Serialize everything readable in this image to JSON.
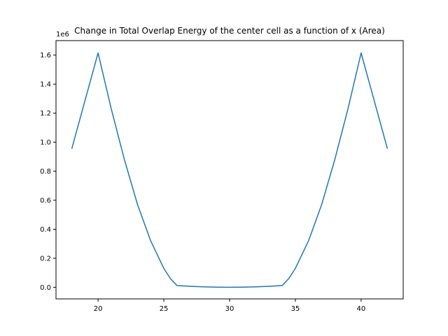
{
  "chart_data": {
    "type": "line",
    "title": "Change in Total Overlap Energy of the center cell as a function of x (Area)",
    "xlabel": "",
    "ylabel": "",
    "y_offset_label": "1e6",
    "xlim": [
      16.8,
      43.2
    ],
    "ylim": [
      -0.08,
      1.7
    ],
    "x_ticks": [
      20,
      25,
      30,
      35,
      40
    ],
    "x_tick_labels": [
      "20",
      "25",
      "30",
      "35",
      "40"
    ],
    "y_ticks": [
      0.0,
      0.2,
      0.4,
      0.6,
      0.8,
      1.0,
      1.2,
      1.4,
      1.6
    ],
    "y_tick_labels": [
      "0.0",
      "0.2",
      "0.4",
      "0.6",
      "0.8",
      "1.0",
      "1.2",
      "1.4",
      "1.6"
    ],
    "grid": false,
    "series": [
      {
        "color": "#1f77b4",
        "x": [
          18,
          20,
          21,
          22,
          23,
          24,
          25,
          25.5,
          26,
          27,
          28,
          29,
          30,
          31,
          32,
          33,
          34,
          34.5,
          35,
          36,
          37,
          38,
          39,
          40,
          42
        ],
        "y": [
          0.955,
          1.615,
          1.23,
          0.88,
          0.57,
          0.32,
          0.13,
          0.06,
          0.012,
          0.007,
          0.003,
          0.0005,
          0.0,
          0.0005,
          0.003,
          0.007,
          0.012,
          0.06,
          0.13,
          0.32,
          0.57,
          0.88,
          1.23,
          1.615,
          0.955
        ]
      }
    ]
  }
}
